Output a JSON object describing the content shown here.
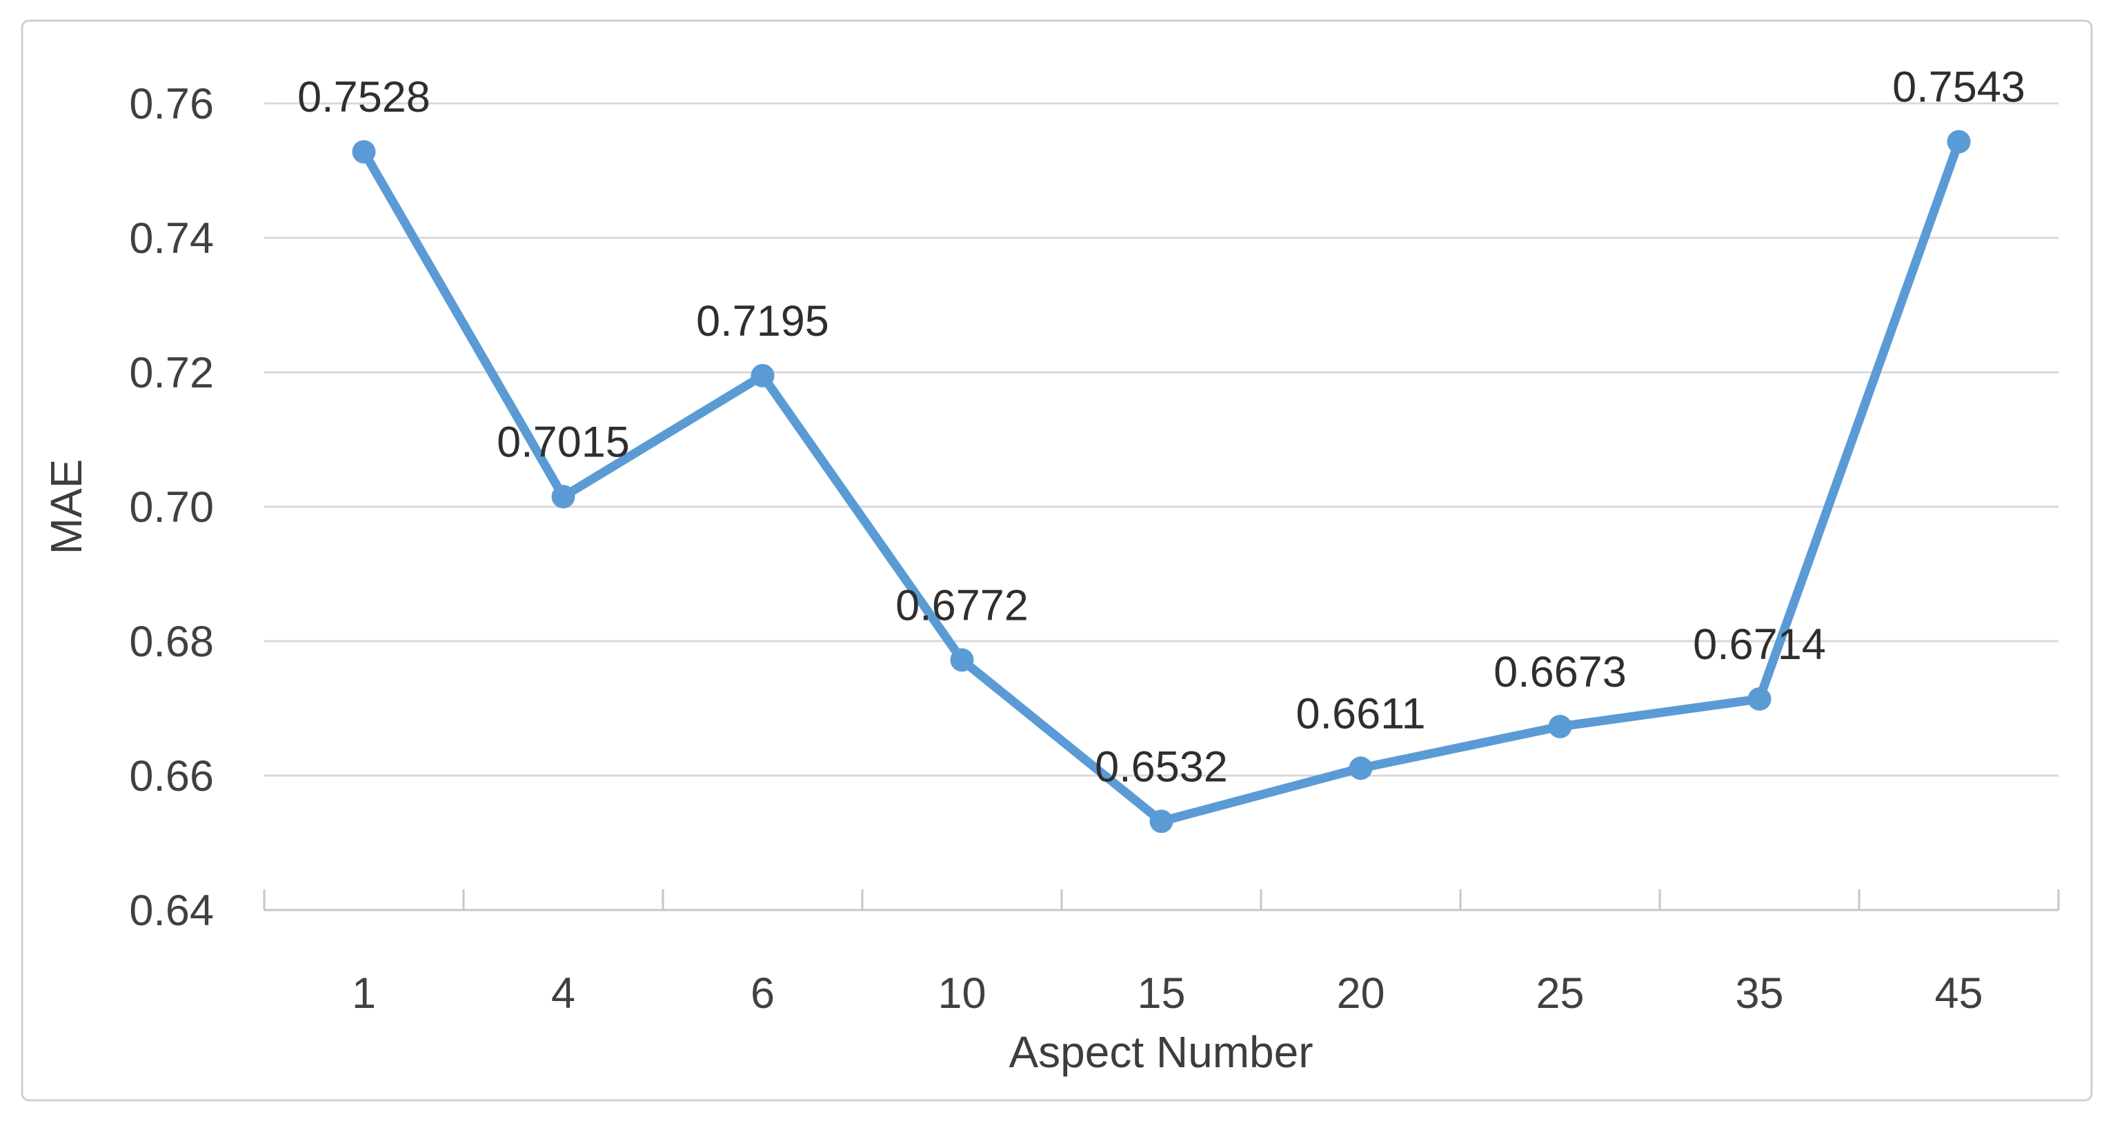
{
  "chart_data": {
    "type": "line",
    "title": "",
    "xlabel": "Aspect Number",
    "ylabel": "MAE",
    "categories": [
      "1",
      "4",
      "6",
      "10",
      "15",
      "20",
      "25",
      "35",
      "45"
    ],
    "series": [
      {
        "name": "MAE",
        "values": [
          0.7528,
          0.7015,
          0.7195,
          0.6772,
          0.6532,
          0.6611,
          0.6673,
          0.6714,
          0.7543
        ],
        "point_labels": [
          "0.7528",
          "0.7015",
          "0.7195",
          "0.6772",
          "0.6532",
          "0.6611",
          "0.6673",
          "0.6714",
          "0.7543"
        ]
      }
    ],
    "ylim": [
      0.64,
      0.76
    ],
    "ytick_labels": [
      "0.64",
      "0.66",
      "0.68",
      "0.70",
      "0.72",
      "0.74",
      "0.76"
    ],
    "grid": true,
    "legend_position": "none",
    "marker": "circle"
  },
  "colors": {
    "accent": "#5B9BD5",
    "gridline": "#D9D9D9",
    "axis_line": "#C6C6C6",
    "tick_label": "#404040",
    "data_label": "#2E2E2E",
    "axis_title": "#3D3D3D",
    "border": "#CFCFCF",
    "background": "#FFFFFF"
  }
}
